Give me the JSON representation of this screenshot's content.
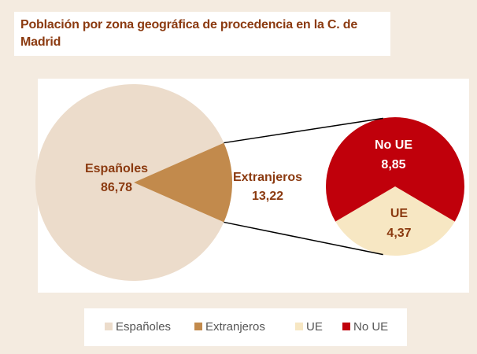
{
  "chart_data": {
    "type": "pie",
    "title": "Población por zona geográfica de procedencia en la C. de Madrid",
    "categories": [
      "Españoles",
      "Extranjeros"
    ],
    "values": [
      86.78,
      13.22
    ],
    "value_labels": [
      "86,78",
      "13,22"
    ],
    "colors": [
      "#ecdccb",
      "#c28a4c"
    ],
    "secondary": {
      "categories": [
        "UE",
        "No UE"
      ],
      "values": [
        4.37,
        8.85
      ],
      "value_labels": [
        "4,37",
        "8,85"
      ],
      "colors": [
        "#f7e7c3",
        "#c0000b"
      ]
    }
  }
}
